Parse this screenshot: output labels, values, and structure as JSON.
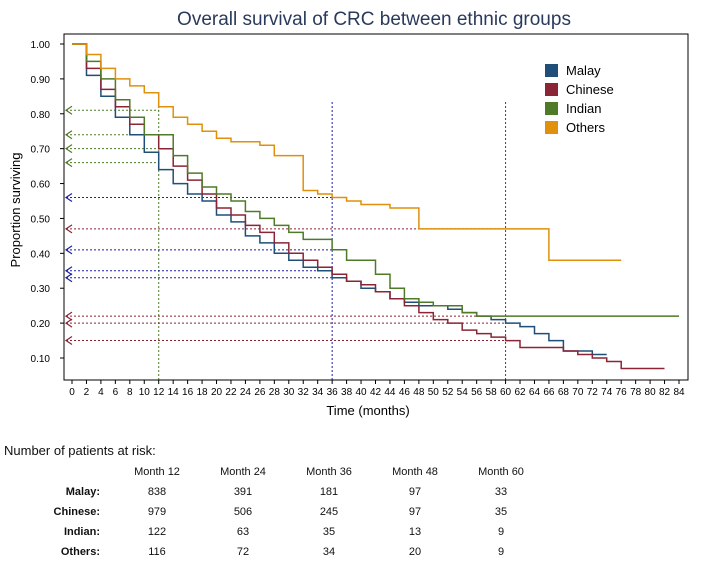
{
  "chart_data": {
    "type": "line",
    "title": "Overall survival of CRC between ethnic groups",
    "xlabel": "Time (months)",
    "ylabel": "Proportion surviving",
    "xlim": [
      0,
      84
    ],
    "ylim": [
      0.05,
      1.02
    ],
    "x_ticks": [
      "0",
      "2",
      "4",
      "6",
      "8",
      "10",
      "12",
      "14",
      "16",
      "18",
      "20",
      "22",
      "24",
      "26",
      "28",
      "30",
      "32",
      "34",
      "36",
      "38",
      "40",
      "42",
      "44",
      "46",
      "48",
      "50",
      "52",
      "54",
      "56",
      "58",
      "60",
      "62",
      "64",
      "66",
      "68",
      "70",
      "72",
      "74",
      "76",
      "78",
      "80",
      "82",
      "84"
    ],
    "y_ticks": [
      "0.10",
      "0.20",
      "0.30",
      "0.40",
      "0.50",
      "0.60",
      "0.70",
      "0.80",
      "0.90",
      "1.00"
    ],
    "legend_position": "top-right",
    "series": [
      {
        "name": "Malay",
        "color": "#1f4e79",
        "x": [
          0,
          2,
          4,
          6,
          8,
          10,
          12,
          14,
          16,
          18,
          20,
          22,
          24,
          26,
          28,
          30,
          32,
          34,
          36,
          38,
          40,
          42,
          44,
          46,
          48,
          50,
          52,
          54,
          56,
          58,
          60,
          62,
          64,
          66,
          68,
          70,
          72,
          74
        ],
        "y": [
          1.0,
          0.91,
          0.85,
          0.79,
          0.74,
          0.69,
          0.64,
          0.6,
          0.57,
          0.55,
          0.51,
          0.49,
          0.45,
          0.43,
          0.4,
          0.38,
          0.36,
          0.35,
          0.33,
          0.32,
          0.3,
          0.29,
          0.27,
          0.26,
          0.25,
          0.25,
          0.24,
          0.23,
          0.22,
          0.21,
          0.2,
          0.19,
          0.17,
          0.15,
          0.12,
          0.12,
          0.11,
          0.11
        ]
      },
      {
        "name": "Chinese",
        "color": "#8b2535",
        "x": [
          0,
          2,
          4,
          6,
          8,
          10,
          12,
          14,
          16,
          18,
          20,
          22,
          24,
          26,
          28,
          30,
          32,
          34,
          36,
          38,
          40,
          42,
          44,
          46,
          48,
          50,
          52,
          54,
          56,
          58,
          60,
          62,
          64,
          66,
          68,
          70,
          72,
          74,
          76,
          78,
          80,
          82
        ],
        "y": [
          1.0,
          0.93,
          0.87,
          0.82,
          0.77,
          0.74,
          0.7,
          0.65,
          0.61,
          0.57,
          0.53,
          0.51,
          0.48,
          0.46,
          0.43,
          0.4,
          0.38,
          0.36,
          0.34,
          0.32,
          0.31,
          0.29,
          0.27,
          0.25,
          0.23,
          0.21,
          0.2,
          0.18,
          0.17,
          0.16,
          0.15,
          0.13,
          0.13,
          0.13,
          0.12,
          0.11,
          0.1,
          0.09,
          0.07,
          0.07,
          0.07,
          0.07
        ]
      },
      {
        "name": "Indian",
        "color": "#4f7a28",
        "x": [
          0,
          2,
          4,
          6,
          8,
          10,
          12,
          14,
          16,
          18,
          20,
          22,
          24,
          26,
          28,
          30,
          32,
          34,
          36,
          38,
          40,
          42,
          44,
          46,
          48,
          50,
          52,
          54,
          56,
          84
        ],
        "y": [
          1.0,
          0.95,
          0.9,
          0.84,
          0.79,
          0.74,
          0.74,
          0.68,
          0.63,
          0.59,
          0.57,
          0.55,
          0.52,
          0.5,
          0.48,
          0.46,
          0.44,
          0.44,
          0.41,
          0.38,
          0.38,
          0.34,
          0.3,
          0.27,
          0.26,
          0.25,
          0.25,
          0.23,
          0.22,
          0.22
        ]
      },
      {
        "name": "Others",
        "color": "#e0900a",
        "x": [
          0,
          2,
          4,
          6,
          8,
          10,
          12,
          14,
          16,
          18,
          20,
          22,
          24,
          26,
          28,
          30,
          32,
          34,
          36,
          38,
          40,
          42,
          44,
          46,
          48,
          50,
          52,
          54,
          56,
          58,
          60,
          62,
          64,
          66,
          68,
          70,
          72,
          74,
          76
        ],
        "y": [
          1.0,
          0.97,
          0.93,
          0.9,
          0.88,
          0.86,
          0.82,
          0.79,
          0.77,
          0.75,
          0.73,
          0.72,
          0.72,
          0.71,
          0.68,
          0.68,
          0.58,
          0.57,
          0.56,
          0.55,
          0.54,
          0.54,
          0.53,
          0.53,
          0.47,
          0.47,
          0.47,
          0.47,
          0.47,
          0.47,
          0.47,
          0.47,
          0.47,
          0.38,
          0.38,
          0.38,
          0.38,
          0.38,
          0.38
        ]
      }
    ],
    "reference_lines": {
      "vertical": [
        {
          "x": 12,
          "color": "#4f7a28"
        },
        {
          "x": 36,
          "color": "#1f1fa8"
        },
        {
          "x": 60,
          "color": "#8b2535"
        }
      ],
      "horizontal": [
        {
          "y": 0.81,
          "x_end": 12,
          "color": "#4f7a28"
        },
        {
          "y": 0.74,
          "x_end": 12,
          "color": "#4f7a28"
        },
        {
          "y": 0.7,
          "x_end": 12,
          "color": "#4f7a28"
        },
        {
          "y": 0.66,
          "x_end": 12,
          "color": "#4f7a28"
        },
        {
          "y": 0.56,
          "x_end": 36,
          "color": "#1f1fa8"
        },
        {
          "y": 0.47,
          "x_end": 60,
          "color": "#8b2535"
        },
        {
          "y": 0.41,
          "x_end": 36,
          "color": "#1f1fa8"
        },
        {
          "y": 0.35,
          "x_end": 36,
          "color": "#1f1fa8"
        },
        {
          "y": 0.33,
          "x_end": 36,
          "color": "#1f1fa8"
        },
        {
          "y": 0.22,
          "x_end": 60,
          "color": "#8b2535"
        },
        {
          "y": 0.2,
          "x_end": 60,
          "color": "#8b2535"
        },
        {
          "y": 0.15,
          "x_end": 60,
          "color": "#8b2535"
        }
      ]
    }
  },
  "risk_table": {
    "heading": "Number of patients at risk:",
    "columns": [
      "Month 12",
      "Month 24",
      "Month 36",
      "Month 48",
      "Month 60"
    ],
    "rows": [
      {
        "label": "Malay:",
        "values": [
          "838",
          "391",
          "181",
          "97",
          "33"
        ]
      },
      {
        "label": "Chinese:",
        "values": [
          "979",
          "506",
          "245",
          "97",
          "35"
        ]
      },
      {
        "label": "Indian:",
        "values": [
          "122",
          "63",
          "35",
          "13",
          "9"
        ]
      },
      {
        "label": "Others:",
        "values": [
          "116",
          "72",
          "34",
          "20",
          "9"
        ]
      }
    ]
  }
}
